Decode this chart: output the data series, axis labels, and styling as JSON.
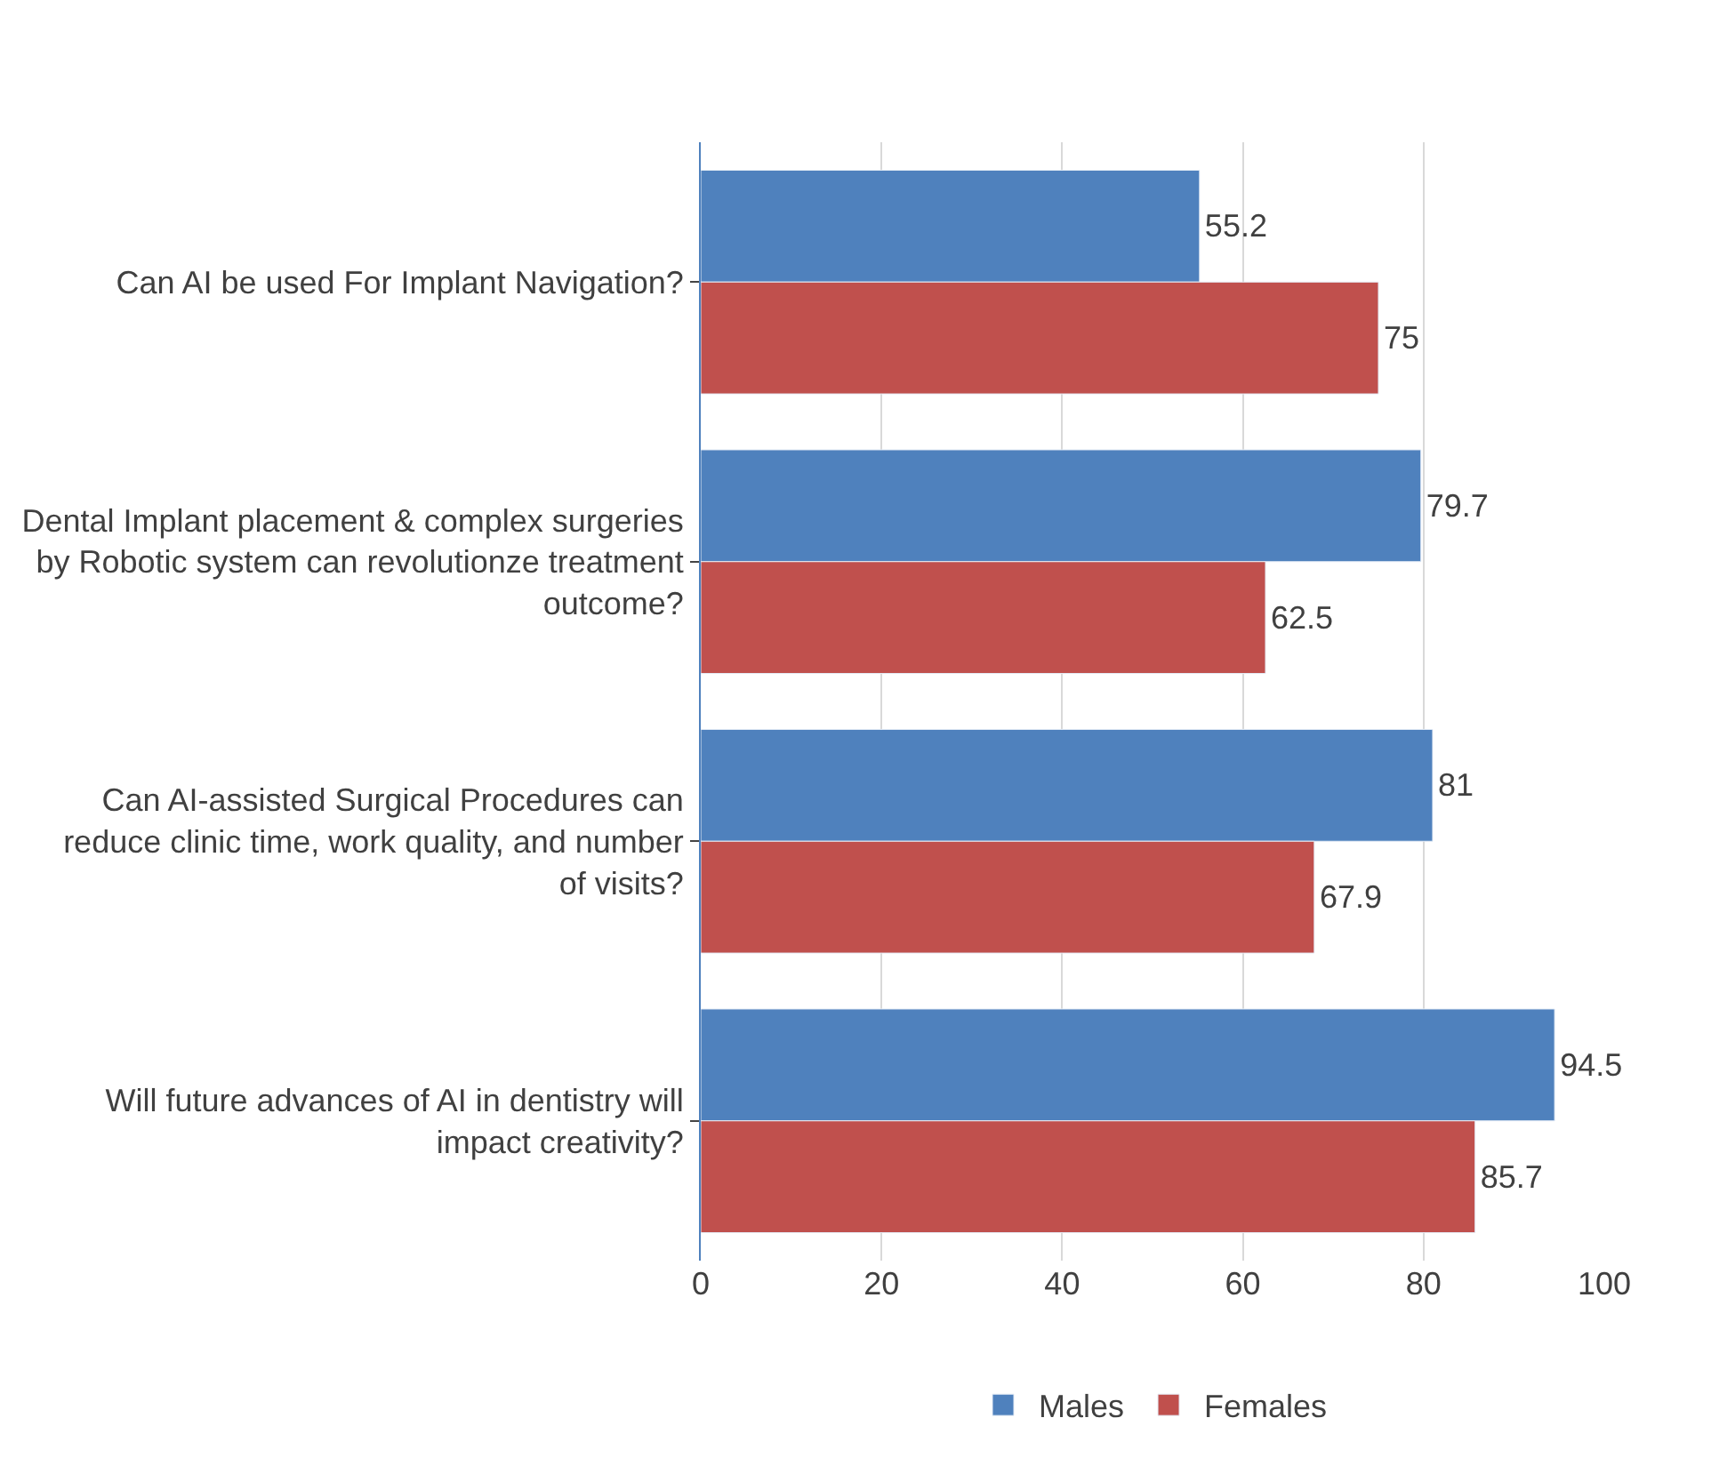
{
  "chart_data": {
    "type": "bar",
    "orientation": "horizontal",
    "categories": [
      "Can AI be used For Implant Navigation?",
      "Dental Implant placement & complex surgeries by Robotic system can revolutionze treatment outcome?",
      "Can AI-assisted Surgical Procedures can reduce clinic time, work quality, and number of visits?",
      "Will future advances of AI in dentistry will impact creativity?"
    ],
    "series": [
      {
        "name": "Males",
        "color": "#4f81bd",
        "values": [
          55.2,
          79.7,
          81,
          94.5
        ]
      },
      {
        "name": "Females",
        "color": "#c0504d",
        "values": [
          75,
          62.5,
          67.9,
          85.7
        ]
      }
    ],
    "xlim": [
      0,
      100
    ],
    "xticks": [
      0,
      20,
      40,
      60,
      80,
      100
    ],
    "grid": "x",
    "legend": "bottom",
    "data_labels": true
  }
}
